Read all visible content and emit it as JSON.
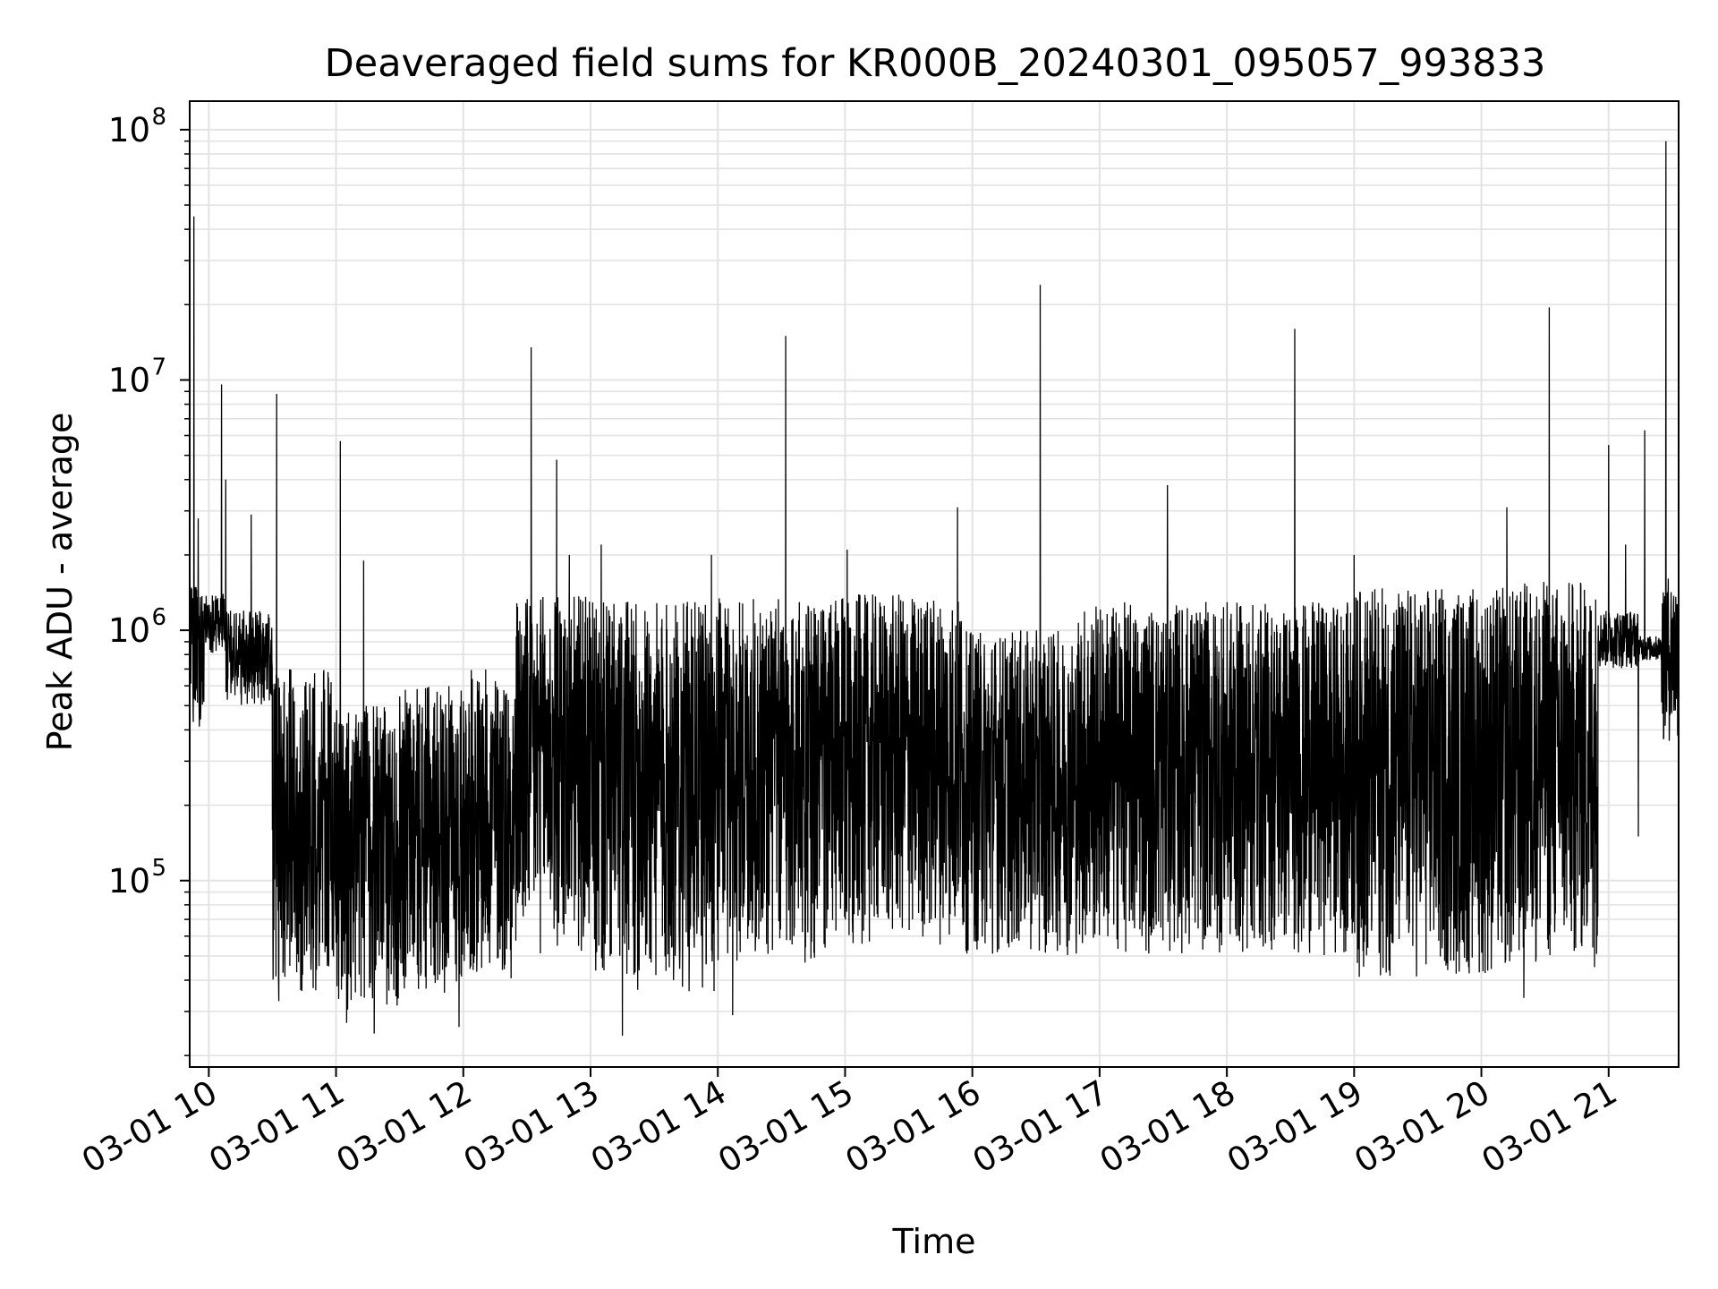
{
  "chart_data": {
    "type": "line",
    "title": "Deaveraged field sums for KR000B_20240301_095057_993833",
    "xlabel": "Time",
    "ylabel": "Peak ADU - average",
    "yscale": "log",
    "ylim": [
      18000,
      130000000
    ],
    "xlim": [
      "03-01 09:51",
      "03-01 21:33"
    ],
    "grid": true,
    "line_color": "#000000",
    "grid_color": "#e3e3e3",
    "x_ticks": [
      "03-01 10",
      "03-01 11",
      "03-01 12",
      "03-01 13",
      "03-01 14",
      "03-01 15",
      "03-01 16",
      "03-01 17",
      "03-01 18",
      "03-01 19",
      "03-01 20",
      "03-01 21"
    ],
    "y_ticks": [
      {
        "base": "10",
        "exp": "5",
        "value": 100000
      },
      {
        "base": "10",
        "exp": "6",
        "value": 1000000
      },
      {
        "base": "10",
        "exp": "7",
        "value": 10000000
      },
      {
        "base": "10",
        "exp": "8",
        "value": 100000000
      }
    ],
    "segments": [
      {
        "start": "09:51",
        "end": "09:58",
        "low": 400000,
        "high": 1500000
      },
      {
        "start": "09:58",
        "end": "10:08",
        "low": 800000,
        "high": 1400000
      },
      {
        "start": "10:08",
        "end": "10:30",
        "low": 500000,
        "high": 1200000
      },
      {
        "start": "10:30",
        "end": "11:00",
        "low": 35000,
        "high": 700000
      },
      {
        "start": "11:00",
        "end": "11:30",
        "low": 30000,
        "high": 500000
      },
      {
        "start": "11:30",
        "end": "12:00",
        "low": 35000,
        "high": 600000
      },
      {
        "start": "12:00",
        "end": "12:25",
        "low": 40000,
        "high": 700000
      },
      {
        "start": "12:25",
        "end": "13:00",
        "low": 50000,
        "high": 1400000
      },
      {
        "start": "13:00",
        "end": "14:00",
        "low": 35000,
        "high": 1300000
      },
      {
        "start": "14:00",
        "end": "15:00",
        "low": 45000,
        "high": 1350000
      },
      {
        "start": "15:00",
        "end": "15:55",
        "low": 55000,
        "high": 1400000
      },
      {
        "start": "15:55",
        "end": "16:50",
        "low": 50000,
        "high": 1000000
      },
      {
        "start": "16:50",
        "end": "19:00",
        "low": 50000,
        "high": 1300000
      },
      {
        "start": "19:00",
        "end": "19:55",
        "low": 40000,
        "high": 1500000
      },
      {
        "start": "19:55",
        "end": "20:20",
        "low": 40000,
        "high": 1500000
      },
      {
        "start": "20:20",
        "end": "20:55",
        "low": 45000,
        "high": 1600000
      },
      {
        "start": "20:55",
        "end": "21:14",
        "low": 700000,
        "high": 1200000
      },
      {
        "start": "21:14",
        "end": "21:25",
        "low": 750000,
        "high": 950000
      },
      {
        "start": "21:25",
        "end": "21:33",
        "low": 350000,
        "high": 1700000
      }
    ],
    "spikes": [
      {
        "t": "09:53",
        "value": 45000000
      },
      {
        "t": "09:55",
        "value": 2800000
      },
      {
        "t": "10:06",
        "value": 9600000
      },
      {
        "t": "10:08",
        "value": 4000000
      },
      {
        "t": "10:20",
        "value": 2900000
      },
      {
        "t": "10:32",
        "value": 8800000
      },
      {
        "t": "11:02",
        "value": 5700000
      },
      {
        "t": "11:13",
        "value": 1900000
      },
      {
        "t": "12:32",
        "value": 13500000
      },
      {
        "t": "12:44",
        "value": 4800000
      },
      {
        "t": "12:50",
        "value": 2000000
      },
      {
        "t": "13:05",
        "value": 2200000
      },
      {
        "t": "13:57",
        "value": 2000000
      },
      {
        "t": "14:32",
        "value": 15000000
      },
      {
        "t": "15:01",
        "value": 2100000
      },
      {
        "t": "15:53",
        "value": 3100000
      },
      {
        "t": "16:32",
        "value": 24000000
      },
      {
        "t": "17:32",
        "value": 3800000
      },
      {
        "t": "18:32",
        "value": 16000000
      },
      {
        "t": "19:00",
        "value": 2000000
      },
      {
        "t": "20:12",
        "value": 3100000
      },
      {
        "t": "20:32",
        "value": 19500000
      },
      {
        "t": "21:00",
        "value": 5500000
      },
      {
        "t": "21:08",
        "value": 2200000
      },
      {
        "t": "21:17",
        "value": 6300000
      },
      {
        "t": "21:27",
        "value": 90000000
      }
    ],
    "dips": [
      {
        "t": "10:33",
        "value": 33000
      },
      {
        "t": "11:05",
        "value": 27000
      },
      {
        "t": "11:18",
        "value": 24500
      },
      {
        "t": "11:58",
        "value": 26000
      },
      {
        "t": "13:15",
        "value": 24000
      },
      {
        "t": "14:07",
        "value": 29000
      },
      {
        "t": "20:20",
        "value": 34000
      },
      {
        "t": "21:14",
        "value": 150000
      }
    ]
  }
}
